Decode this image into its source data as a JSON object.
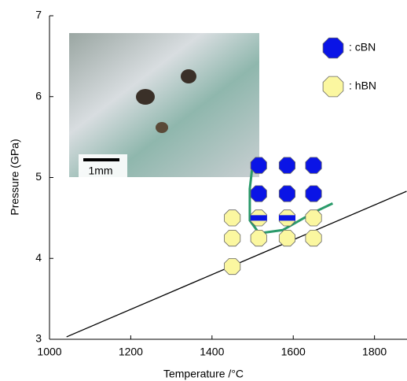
{
  "chart_data": {
    "type": "scatter",
    "xlabel": "Temperature /°C",
    "ylabel": "Pressure (GPa)",
    "xlim": [
      1000,
      1880
    ],
    "ylim": [
      3,
      7
    ],
    "xticks": [
      1000,
      1200,
      1400,
      1600,
      1800
    ],
    "yticks": [
      3,
      4,
      5,
      6,
      7
    ],
    "inset_label": "1mm",
    "series": [
      {
        "name": ": cBN",
        "color": "#0a14e6",
        "x": [
          1515,
          1585,
          1650,
          1515,
          1585,
          1650
        ],
        "values": [
          5.15,
          5.15,
          5.15,
          4.8,
          4.8,
          4.8
        ]
      },
      {
        "name": ": hBN",
        "color": "#fbf7a0",
        "x": [
          1450,
          1650,
          1450,
          1515,
          1585,
          1650,
          1450
        ],
        "values": [
          4.5,
          4.5,
          4.25,
          4.25,
          4.25,
          4.25,
          3.9
        ]
      },
      {
        "color": "#fbf7a0",
        "stripe": "#0a14e6",
        "x": [
          1515,
          1585
        ],
        "values": [
          4.5,
          4.5
        ]
      }
    ],
    "lines": [
      {
        "color": "#000000",
        "x": [
          1042,
          1879
        ],
        "values": [
          3.03,
          4.83
        ]
      },
      {
        "color": "#2a9a6a",
        "x": [
          1500,
          1493,
          1493,
          1516,
          1574,
          1651,
          1697
        ],
        "values": [
          5.16,
          4.86,
          4.47,
          4.31,
          4.35,
          4.57,
          4.68
        ]
      }
    ]
  }
}
